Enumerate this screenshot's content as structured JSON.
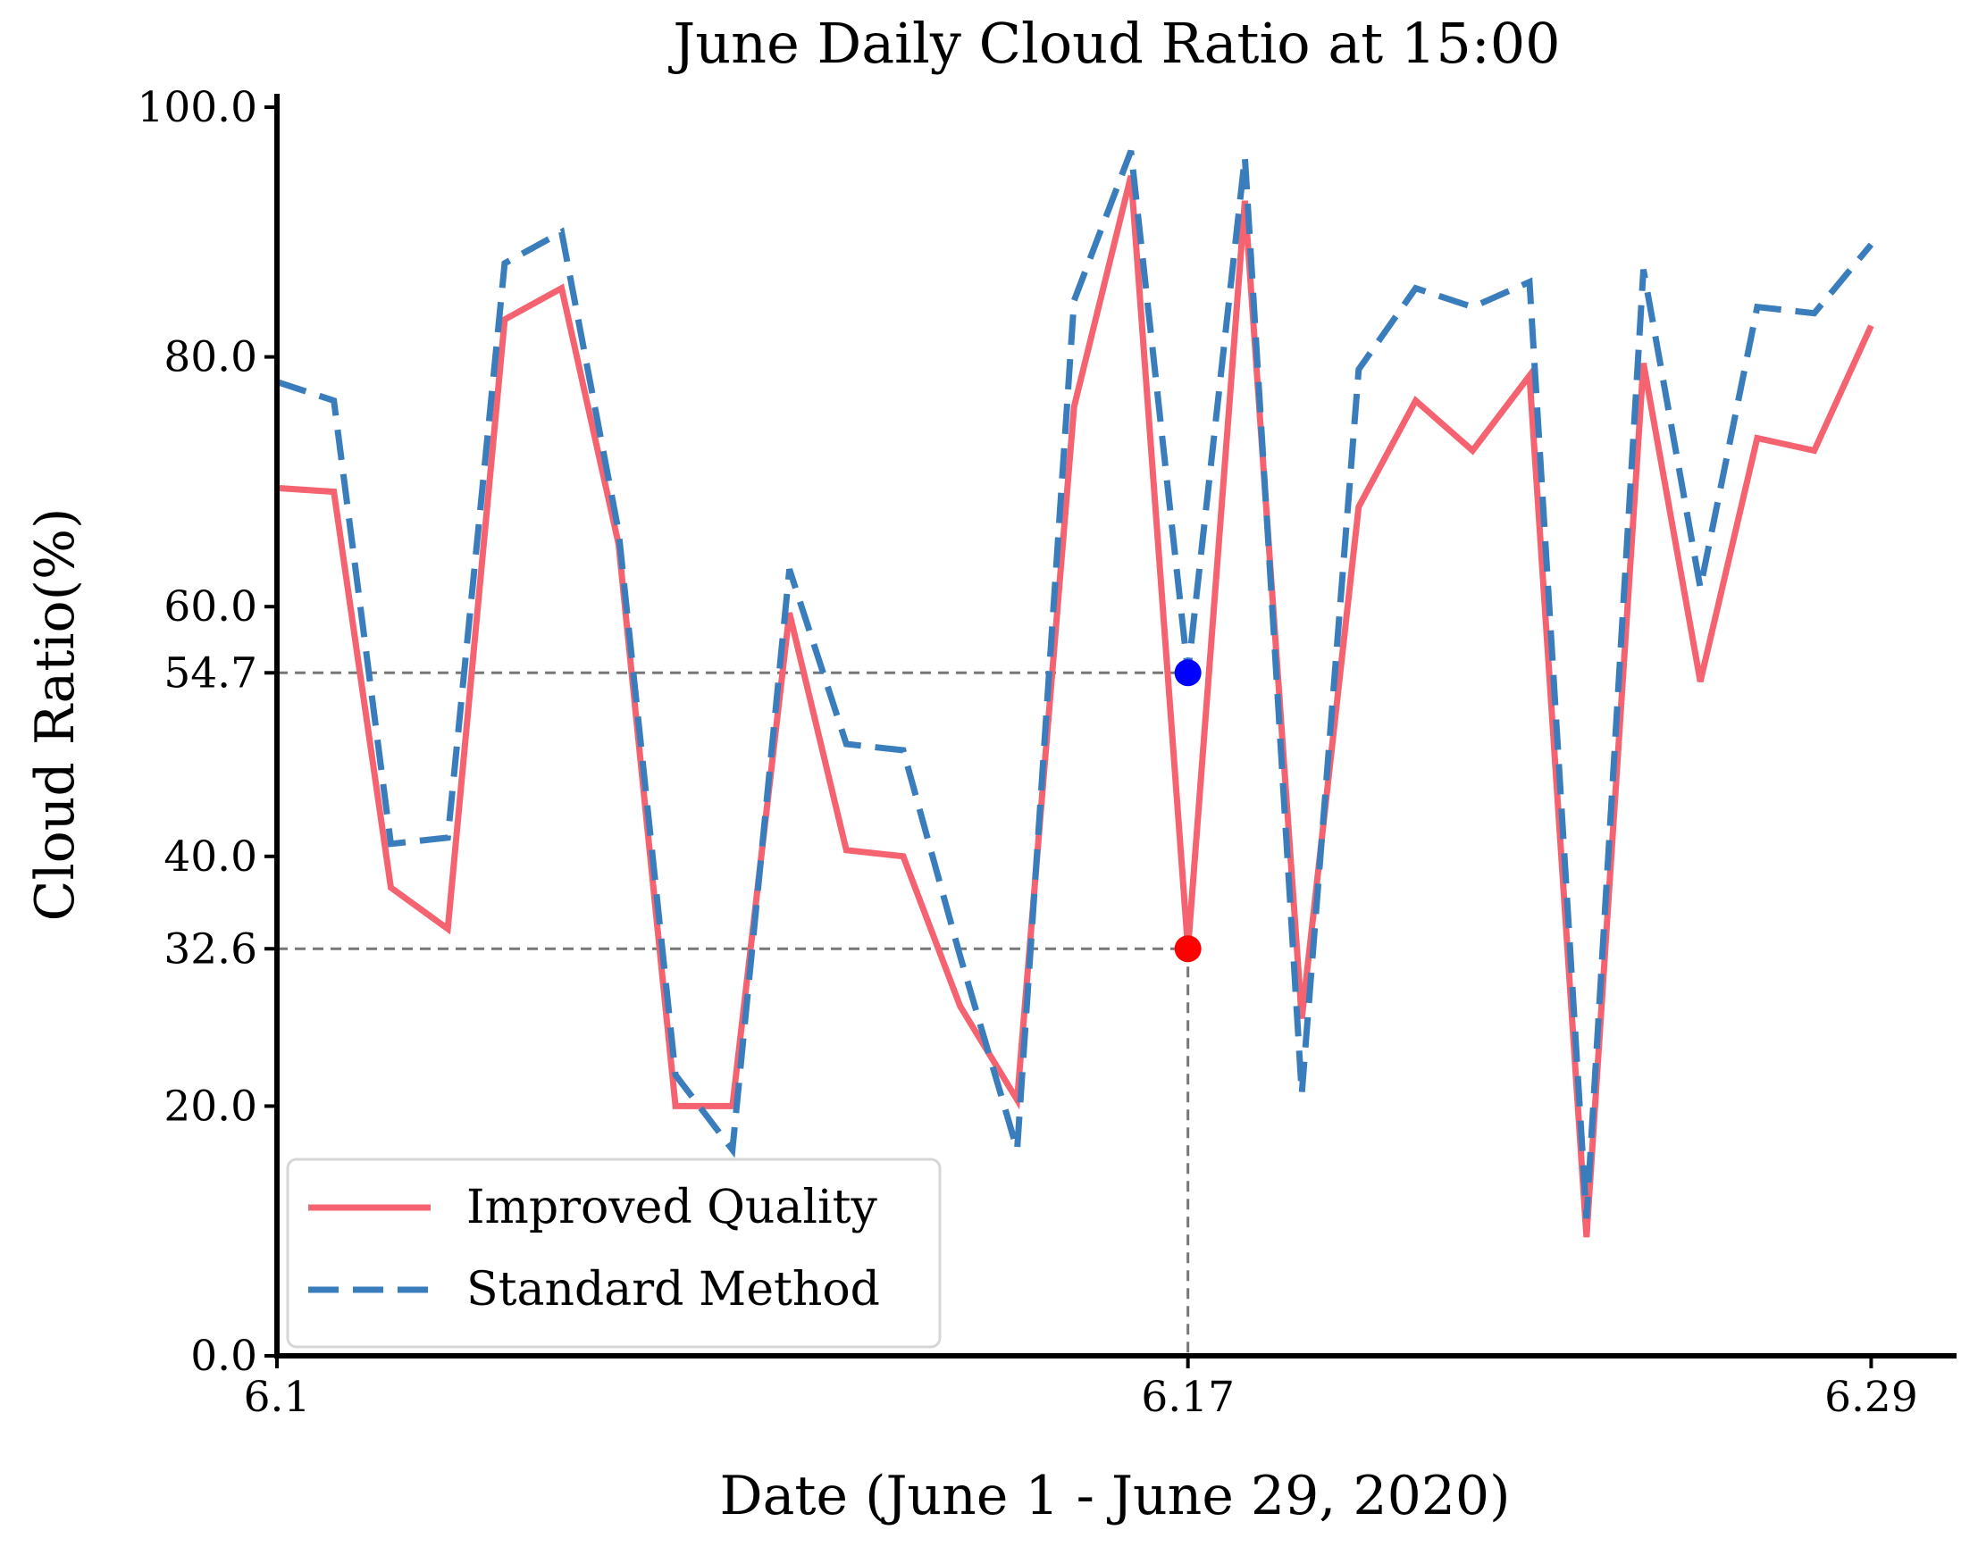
{
  "chart_data": {
    "type": "line",
    "title": "June Daily Cloud Ratio at 15:00",
    "xlabel": "Date (June 1 - June 29, 2020)",
    "ylabel": "Cloud Ratio(%)",
    "x": [
      1,
      2,
      3,
      4,
      5,
      6,
      7,
      8,
      9,
      10,
      11,
      12,
      13,
      14,
      15,
      16,
      17,
      18,
      19,
      20,
      21,
      22,
      23,
      24,
      25,
      26,
      27,
      28,
      29
    ],
    "xlim": [
      1,
      30.5
    ],
    "ylim": [
      0,
      100
    ],
    "xticks": [
      {
        "value": 1,
        "label": "6.1"
      },
      {
        "value": 17,
        "label": "6.17"
      },
      {
        "value": 29,
        "label": "6.29"
      }
    ],
    "yticks": [
      {
        "value": 0,
        "label": "0.0"
      },
      {
        "value": 20,
        "label": "20.0"
      },
      {
        "value": 32.6,
        "label": "32.6"
      },
      {
        "value": 40,
        "label": "40.0"
      },
      {
        "value": 54.7,
        "label": "54.7"
      },
      {
        "value": 60,
        "label": "60.0"
      },
      {
        "value": 80,
        "label": "80.0"
      },
      {
        "value": 100,
        "label": "100.0"
      }
    ],
    "series": [
      {
        "name": "Improved Quality",
        "color": "#f4636f",
        "style": "solid",
        "values": [
          69.5,
          69.2,
          37.5,
          34.2,
          83.0,
          85.5,
          65.0,
          20.0,
          20.0,
          59.5,
          40.5,
          40.0,
          28.0,
          20.5,
          76.0,
          94.5,
          32.6,
          92.5,
          27.0,
          68.0,
          76.5,
          72.5,
          78.5,
          9.5,
          79.5,
          54.0,
          73.5,
          72.5,
          82.5
        ]
      },
      {
        "name": "Standard Method",
        "color": "#3a7dbd",
        "style": "dashed",
        "values": [
          78.0,
          76.5,
          41.0,
          41.5,
          87.5,
          90.0,
          66.0,
          22.5,
          16.5,
          63.0,
          49.0,
          48.5,
          32.0,
          16.5,
          84.5,
          96.5,
          54.7,
          96.0,
          21.0,
          79.0,
          85.5,
          84.0,
          86.0,
          11.0,
          87.0,
          61.5,
          84.0,
          83.5,
          89.0
        ]
      }
    ],
    "annotations": [
      {
        "x": 17,
        "y": 54.7,
        "color": "#0000ff",
        "series": "Standard Method"
      },
      {
        "x": 17,
        "y": 32.6,
        "color": "#ff0000",
        "series": "Improved Quality"
      }
    ],
    "legend": "lower-left",
    "grid": false
  }
}
